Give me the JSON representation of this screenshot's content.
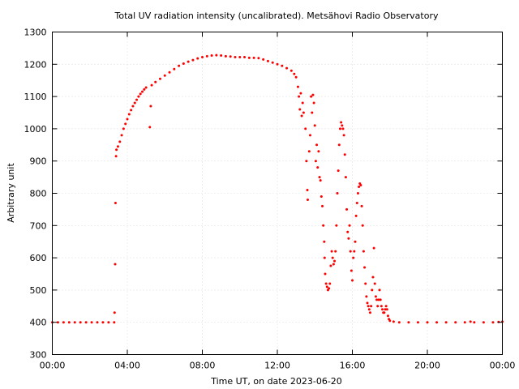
{
  "chart_data": {
    "type": "scatter",
    "title": "Total UV radiation intensity (uncalibrated). Metsähovi Radio Observatory",
    "xlabel": "Time UT, on date 2023-06-20",
    "ylabel": "Arbitrary unit",
    "xlim": [
      0,
      24
    ],
    "ylim": [
      300,
      1300
    ],
    "grid": true,
    "marker_color": "#ff0000",
    "x_ticks": [
      {
        "value": 0,
        "label": "00:00"
      },
      {
        "value": 4,
        "label": "04:00"
      },
      {
        "value": 8,
        "label": "08:00"
      },
      {
        "value": 12,
        "label": "12:00"
      },
      {
        "value": 16,
        "label": "16:00"
      },
      {
        "value": 20,
        "label": "20:00"
      },
      {
        "value": 24,
        "label": "00:00"
      }
    ],
    "y_ticks": [
      {
        "value": 300,
        "label": "300"
      },
      {
        "value": 400,
        "label": "400"
      },
      {
        "value": 500,
        "label": "500"
      },
      {
        "value": 600,
        "label": "600"
      },
      {
        "value": 700,
        "label": "700"
      },
      {
        "value": 800,
        "label": "800"
      },
      {
        "value": 900,
        "label": "900"
      },
      {
        "value": 1000,
        "label": "1000"
      },
      {
        "value": 1100,
        "label": "1100"
      },
      {
        "value": 1200,
        "label": "1200"
      },
      {
        "value": 1300,
        "label": "1300"
      }
    ],
    "series": [
      {
        "points": [
          [
            0.0,
            400
          ],
          [
            0.3,
            400
          ],
          [
            0.6,
            400
          ],
          [
            0.9,
            400
          ],
          [
            1.2,
            400
          ],
          [
            1.5,
            400
          ],
          [
            1.8,
            400
          ],
          [
            2.1,
            400
          ],
          [
            2.4,
            400
          ],
          [
            2.7,
            400
          ],
          [
            3.0,
            400
          ],
          [
            3.3,
            400
          ],
          [
            3.32,
            430
          ],
          [
            3.35,
            580
          ],
          [
            3.37,
            770
          ],
          [
            3.4,
            915
          ],
          [
            3.42,
            935
          ],
          [
            3.5,
            945
          ],
          [
            3.6,
            960
          ],
          [
            3.7,
            980
          ],
          [
            3.8,
            1000
          ],
          [
            3.9,
            1015
          ],
          [
            4.0,
            1030
          ],
          [
            4.1,
            1045
          ],
          [
            4.2,
            1058
          ],
          [
            4.3,
            1070
          ],
          [
            4.4,
            1080
          ],
          [
            4.5,
            1090
          ],
          [
            4.6,
            1100
          ],
          [
            4.7,
            1108
          ],
          [
            4.8,
            1115
          ],
          [
            4.9,
            1122
          ],
          [
            5.0,
            1128
          ],
          [
            5.2,
            1005
          ],
          [
            5.25,
            1070
          ],
          [
            5.3,
            1135
          ],
          [
            5.5,
            1145
          ],
          [
            5.75,
            1155
          ],
          [
            6.0,
            1165
          ],
          [
            6.25,
            1175
          ],
          [
            6.5,
            1185
          ],
          [
            6.75,
            1195
          ],
          [
            7.0,
            1202
          ],
          [
            7.25,
            1208
          ],
          [
            7.5,
            1213
          ],
          [
            7.75,
            1218
          ],
          [
            8.0,
            1222
          ],
          [
            8.25,
            1225
          ],
          [
            8.5,
            1227
          ],
          [
            8.75,
            1228
          ],
          [
            9.0,
            1227
          ],
          [
            9.25,
            1225
          ],
          [
            9.5,
            1224
          ],
          [
            9.75,
            1222
          ],
          [
            10.0,
            1222
          ],
          [
            10.25,
            1222
          ],
          [
            10.5,
            1220
          ],
          [
            10.75,
            1220
          ],
          [
            11.0,
            1219
          ],
          [
            11.25,
            1215
          ],
          [
            11.5,
            1210
          ],
          [
            11.75,
            1205
          ],
          [
            12.0,
            1200
          ],
          [
            12.25,
            1195
          ],
          [
            12.5,
            1188
          ],
          [
            12.75,
            1180
          ],
          [
            12.9,
            1170
          ],
          [
            13.0,
            1160
          ],
          [
            13.1,
            1130
          ],
          [
            13.15,
            1100
          ],
          [
            13.2,
            1060
          ],
          [
            13.25,
            1110
          ],
          [
            13.3,
            1040
          ],
          [
            13.35,
            1080
          ],
          [
            13.4,
            1050
          ],
          [
            13.5,
            1000
          ],
          [
            13.55,
            900
          ],
          [
            13.6,
            810
          ],
          [
            13.62,
            780
          ],
          [
            13.7,
            930
          ],
          [
            13.75,
            980
          ],
          [
            13.8,
            1100
          ],
          [
            13.85,
            1050
          ],
          [
            13.9,
            1105
          ],
          [
            13.95,
            1080
          ],
          [
            14.0,
            1010
          ],
          [
            14.05,
            900
          ],
          [
            14.1,
            950
          ],
          [
            14.15,
            880
          ],
          [
            14.2,
            930
          ],
          [
            14.25,
            850
          ],
          [
            14.3,
            840
          ],
          [
            14.35,
            790
          ],
          [
            14.4,
            760
          ],
          [
            14.45,
            700
          ],
          [
            14.5,
            650
          ],
          [
            14.52,
            600
          ],
          [
            14.55,
            550
          ],
          [
            14.6,
            520
          ],
          [
            14.65,
            510
          ],
          [
            14.7,
            500
          ],
          [
            14.75,
            505
          ],
          [
            14.8,
            520
          ],
          [
            14.85,
            575
          ],
          [
            14.9,
            620
          ],
          [
            14.95,
            600
          ],
          [
            15.0,
            580
          ],
          [
            15.05,
            590
          ],
          [
            15.1,
            620
          ],
          [
            15.15,
            700
          ],
          [
            15.2,
            800
          ],
          [
            15.25,
            870
          ],
          [
            15.3,
            950
          ],
          [
            15.35,
            1000
          ],
          [
            15.4,
            1020
          ],
          [
            15.45,
            1010
          ],
          [
            15.5,
            1000
          ],
          [
            15.55,
            980
          ],
          [
            15.6,
            920
          ],
          [
            15.65,
            850
          ],
          [
            15.7,
            750
          ],
          [
            15.75,
            680
          ],
          [
            15.8,
            660
          ],
          [
            15.85,
            700
          ],
          [
            15.9,
            620
          ],
          [
            15.95,
            560
          ],
          [
            16.0,
            530
          ],
          [
            16.05,
            600
          ],
          [
            16.1,
            620
          ],
          [
            16.15,
            650
          ],
          [
            16.2,
            730
          ],
          [
            16.25,
            770
          ],
          [
            16.3,
            800
          ],
          [
            16.35,
            820
          ],
          [
            16.4,
            830
          ],
          [
            16.45,
            825
          ],
          [
            16.5,
            760
          ],
          [
            16.55,
            700
          ],
          [
            16.6,
            620
          ],
          [
            16.65,
            570
          ],
          [
            16.7,
            520
          ],
          [
            16.75,
            480
          ],
          [
            16.8,
            460
          ],
          [
            16.85,
            450
          ],
          [
            16.9,
            440
          ],
          [
            16.95,
            430
          ],
          [
            17.0,
            450
          ],
          [
            17.05,
            500
          ],
          [
            17.1,
            540
          ],
          [
            17.15,
            630
          ],
          [
            17.2,
            520
          ],
          [
            17.25,
            480
          ],
          [
            17.3,
            470
          ],
          [
            17.35,
            450
          ],
          [
            17.4,
            470
          ],
          [
            17.45,
            500
          ],
          [
            17.5,
            470
          ],
          [
            17.55,
            450
          ],
          [
            17.6,
            440
          ],
          [
            17.65,
            430
          ],
          [
            17.7,
            430
          ],
          [
            17.75,
            440
          ],
          [
            17.8,
            450
          ],
          [
            17.85,
            440
          ],
          [
            17.9,
            420
          ],
          [
            17.95,
            410
          ],
          [
            18.0,
            405
          ],
          [
            18.2,
            402
          ],
          [
            18.5,
            400
          ],
          [
            19.0,
            400
          ],
          [
            19.5,
            400
          ],
          [
            20.0,
            400
          ],
          [
            20.5,
            400
          ],
          [
            21.0,
            400
          ],
          [
            21.5,
            400
          ],
          [
            22.0,
            400
          ],
          [
            22.3,
            402
          ],
          [
            22.5,
            400
          ],
          [
            23.0,
            400
          ],
          [
            23.5,
            400
          ],
          [
            23.8,
            401
          ],
          [
            24.0,
            402
          ]
        ]
      }
    ]
  }
}
